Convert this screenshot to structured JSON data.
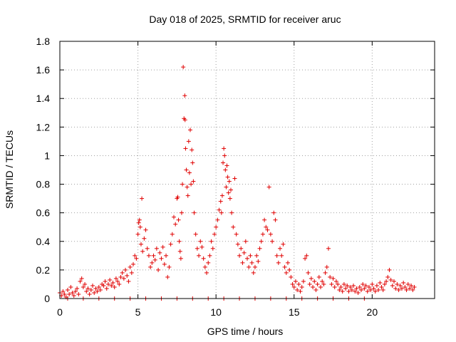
{
  "chart_data": {
    "type": "scatter",
    "title": "Day 018 of 2025, SRMTID for receiver aruc",
    "xlabel": "GPS time / hours",
    "ylabel": "SRMTID / TECUs",
    "xlim": [
      0,
      24
    ],
    "ylim": [
      0,
      1.8
    ],
    "xticks": [
      0,
      5,
      10,
      15,
      20
    ],
    "yticks": [
      0,
      0.2,
      0.4,
      0.6,
      0.8,
      1,
      1.2,
      1.4,
      1.6,
      1.8
    ],
    "xtick_labels": [
      "0",
      "5",
      "10",
      "15",
      "20"
    ],
    "ytick_labels": [
      "0",
      "0.2",
      "0.4",
      "0.6",
      "0.8",
      "1",
      "1.2",
      "1.4",
      "1.6",
      "1.8"
    ],
    "grid": true,
    "marker": "+",
    "color": "#e00000",
    "series": [
      {
        "name": "SRMTID",
        "points": [
          [
            0.0,
            0.04
          ],
          [
            0.1,
            0.02
          ],
          [
            0.2,
            0.05
          ],
          [
            0.3,
            0.03
          ],
          [
            0.4,
            0.01
          ],
          [
            0.5,
            0.06
          ],
          [
            0.6,
            0.03
          ],
          [
            0.7,
            0.08
          ],
          [
            0.8,
            0.04
          ],
          [
            0.9,
            0.02
          ],
          [
            1.0,
            0.05
          ],
          [
            1.1,
            0.07
          ],
          [
            1.2,
            0.03
          ],
          [
            1.3,
            0.12
          ],
          [
            1.4,
            0.14
          ],
          [
            1.5,
            0.08
          ],
          [
            1.6,
            0.1
          ],
          [
            1.7,
            0.05
          ],
          [
            1.8,
            0.07
          ],
          [
            1.9,
            0.03
          ],
          [
            2.0,
            0.06
          ],
          [
            2.1,
            0.09
          ],
          [
            2.2,
            0.04
          ],
          [
            2.3,
            0.07
          ],
          [
            2.4,
            0.05
          ],
          [
            2.5,
            0.08
          ],
          [
            2.6,
            0.06
          ],
          [
            2.7,
            0.1
          ],
          [
            2.8,
            0.09
          ],
          [
            2.9,
            0.12
          ],
          [
            3.0,
            0.07
          ],
          [
            3.1,
            0.1
          ],
          [
            3.2,
            0.13
          ],
          [
            3.3,
            0.09
          ],
          [
            3.4,
            0.11
          ],
          [
            3.5,
            0.08
          ],
          [
            3.6,
            0.14
          ],
          [
            3.7,
            0.12
          ],
          [
            3.8,
            0.1
          ],
          [
            3.9,
            0.15
          ],
          [
            4.0,
            0.18
          ],
          [
            4.1,
            0.14
          ],
          [
            4.2,
            0.2
          ],
          [
            4.3,
            0.16
          ],
          [
            4.4,
            0.12
          ],
          [
            4.5,
            0.22
          ],
          [
            4.6,
            0.18
          ],
          [
            4.7,
            0.24
          ],
          [
            4.8,
            0.3
          ],
          [
            4.9,
            0.28
          ],
          [
            5.0,
            0.45
          ],
          [
            5.05,
            0.53
          ],
          [
            5.1,
            0.55
          ],
          [
            5.15,
            0.5
          ],
          [
            5.2,
            0.38
          ],
          [
            5.25,
            0.7
          ],
          [
            5.3,
            0.33
          ],
          [
            5.4,
            0.42
          ],
          [
            5.5,
            0.48
          ],
          [
            5.6,
            0.35
          ],
          [
            5.7,
            0.3
          ],
          [
            5.8,
            0.22
          ],
          [
            5.9,
            0.25
          ],
          [
            6.0,
            0.3
          ],
          [
            6.1,
            0.27
          ],
          [
            6.2,
            0.35
          ],
          [
            6.3,
            0.2
          ],
          [
            6.4,
            0.32
          ],
          [
            6.5,
            0.28
          ],
          [
            6.6,
            0.36
          ],
          [
            6.7,
            0.24
          ],
          [
            6.8,
            0.3
          ],
          [
            6.9,
            0.15
          ],
          [
            7.0,
            0.22
          ],
          [
            7.1,
            0.38
          ],
          [
            7.2,
            0.45
          ],
          [
            7.3,
            0.57
          ],
          [
            7.4,
            0.52
          ],
          [
            7.5,
            0.7
          ],
          [
            7.55,
            0.71
          ],
          [
            7.6,
            0.55
          ],
          [
            7.65,
            0.4
          ],
          [
            7.7,
            0.33
          ],
          [
            7.75,
            0.28
          ],
          [
            7.8,
            0.6
          ],
          [
            7.85,
            0.8
          ],
          [
            7.9,
            1.62
          ],
          [
            7.95,
            1.26
          ],
          [
            8.0,
            1.42
          ],
          [
            8.02,
            1.25
          ],
          [
            8.05,
            1.05
          ],
          [
            8.1,
            0.9
          ],
          [
            8.15,
            0.78
          ],
          [
            8.2,
            0.72
          ],
          [
            8.25,
            1.1
          ],
          [
            8.3,
            0.88
          ],
          [
            8.35,
            1.18
          ],
          [
            8.4,
            0.8
          ],
          [
            8.45,
            1.04
          ],
          [
            8.5,
            0.95
          ],
          [
            8.55,
            0.82
          ],
          [
            8.6,
            0.6
          ],
          [
            8.7,
            0.45
          ],
          [
            8.8,
            0.35
          ],
          [
            8.9,
            0.3
          ],
          [
            9.0,
            0.4
          ],
          [
            9.1,
            0.36
          ],
          [
            9.2,
            0.28
          ],
          [
            9.3,
            0.22
          ],
          [
            9.4,
            0.18
          ],
          [
            9.5,
            0.25
          ],
          [
            9.6,
            0.3
          ],
          [
            9.7,
            0.4
          ],
          [
            9.8,
            0.35
          ],
          [
            9.9,
            0.45
          ],
          [
            10.0,
            0.5
          ],
          [
            10.1,
            0.55
          ],
          [
            10.2,
            0.62
          ],
          [
            10.3,
            0.68
          ],
          [
            10.35,
            0.6
          ],
          [
            10.4,
            0.72
          ],
          [
            10.45,
            0.95
          ],
          [
            10.5,
            1.05
          ],
          [
            10.55,
            1.0
          ],
          [
            10.6,
            0.9
          ],
          [
            10.65,
            0.78
          ],
          [
            10.7,
            0.93
          ],
          [
            10.75,
            0.85
          ],
          [
            10.8,
            0.74
          ],
          [
            10.85,
            0.82
          ],
          [
            10.9,
            0.7
          ],
          [
            10.95,
            0.76
          ],
          [
            11.0,
            0.6
          ],
          [
            11.1,
            0.5
          ],
          [
            11.2,
            0.84
          ],
          [
            11.3,
            0.45
          ],
          [
            11.4,
            0.38
          ],
          [
            11.5,
            0.3
          ],
          [
            11.6,
            0.35
          ],
          [
            11.7,
            0.25
          ],
          [
            11.8,
            0.32
          ],
          [
            11.9,
            0.4
          ],
          [
            12.0,
            0.28
          ],
          [
            12.1,
            0.22
          ],
          [
            12.2,
            0.3
          ],
          [
            12.3,
            0.25
          ],
          [
            12.4,
            0.18
          ],
          [
            12.5,
            0.22
          ],
          [
            12.6,
            0.3
          ],
          [
            12.7,
            0.26
          ],
          [
            12.8,
            0.35
          ],
          [
            12.9,
            0.4
          ],
          [
            13.0,
            0.45
          ],
          [
            13.1,
            0.55
          ],
          [
            13.2,
            0.5
          ],
          [
            13.3,
            0.48
          ],
          [
            13.4,
            0.78
          ],
          [
            13.5,
            0.45
          ],
          [
            13.6,
            0.4
          ],
          [
            13.7,
            0.6
          ],
          [
            13.8,
            0.55
          ],
          [
            13.9,
            0.3
          ],
          [
            14.0,
            0.25
          ],
          [
            14.1,
            0.35
          ],
          [
            14.2,
            0.3
          ],
          [
            14.3,
            0.38
          ],
          [
            14.4,
            0.22
          ],
          [
            14.5,
            0.18
          ],
          [
            14.6,
            0.25
          ],
          [
            14.7,
            0.2
          ],
          [
            14.8,
            0.15
          ],
          [
            14.9,
            0.1
          ],
          [
            15.0,
            0.08
          ],
          [
            15.1,
            0.12
          ],
          [
            15.2,
            0.06
          ],
          [
            15.3,
            0.1
          ],
          [
            15.4,
            0.05
          ],
          [
            15.5,
            0.08
          ],
          [
            15.6,
            0.12
          ],
          [
            15.7,
            0.28
          ],
          [
            15.8,
            0.3
          ],
          [
            15.9,
            0.18
          ],
          [
            16.0,
            0.1
          ],
          [
            16.1,
            0.14
          ],
          [
            16.2,
            0.08
          ],
          [
            16.3,
            0.12
          ],
          [
            16.4,
            0.06
          ],
          [
            16.5,
            0.1
          ],
          [
            16.6,
            0.15
          ],
          [
            16.7,
            0.08
          ],
          [
            16.8,
            0.12
          ],
          [
            16.9,
            0.1
          ],
          [
            17.0,
            0.18
          ],
          [
            17.1,
            0.22
          ],
          [
            17.2,
            0.35
          ],
          [
            17.3,
            0.15
          ],
          [
            17.4,
            0.1
          ],
          [
            17.5,
            0.14
          ],
          [
            17.6,
            0.08
          ],
          [
            17.7,
            0.12
          ],
          [
            17.8,
            0.1
          ],
          [
            17.9,
            0.06
          ],
          [
            18.0,
            0.08
          ],
          [
            18.1,
            0.05
          ],
          [
            18.2,
            0.1
          ],
          [
            18.3,
            0.07
          ],
          [
            18.4,
            0.09
          ],
          [
            18.5,
            0.05
          ],
          [
            18.6,
            0.08
          ],
          [
            18.7,
            0.06
          ],
          [
            18.8,
            0.09
          ],
          [
            18.9,
            0.05
          ],
          [
            19.0,
            0.07
          ],
          [
            19.1,
            0.04
          ],
          [
            19.2,
            0.08
          ],
          [
            19.3,
            0.06
          ],
          [
            19.4,
            0.1
          ],
          [
            19.5,
            0.07
          ],
          [
            19.6,
            0.09
          ],
          [
            19.7,
            0.05
          ],
          [
            19.8,
            0.08
          ],
          [
            19.9,
            0.06
          ],
          [
            20.0,
            0.1
          ],
          [
            20.1,
            0.07
          ],
          [
            20.2,
            0.05
          ],
          [
            20.3,
            0.09
          ],
          [
            20.4,
            0.06
          ],
          [
            20.5,
            0.11
          ],
          [
            20.6,
            0.08
          ],
          [
            20.7,
            0.06
          ],
          [
            20.8,
            0.1
          ],
          [
            20.9,
            0.12
          ],
          [
            21.0,
            0.15
          ],
          [
            21.1,
            0.2
          ],
          [
            21.2,
            0.13
          ],
          [
            21.3,
            0.09
          ],
          [
            21.4,
            0.12
          ],
          [
            21.5,
            0.07
          ],
          [
            21.6,
            0.1
          ],
          [
            21.7,
            0.06
          ],
          [
            21.8,
            0.09
          ],
          [
            21.9,
            0.07
          ],
          [
            22.0,
            0.11
          ],
          [
            22.1,
            0.08
          ],
          [
            22.2,
            0.06
          ],
          [
            22.3,
            0.1
          ],
          [
            22.4,
            0.07
          ],
          [
            22.5,
            0.09
          ],
          [
            22.6,
            0.06
          ],
          [
            22.7,
            0.08
          ],
          [
            0.5,
            0.0
          ],
          [
            1.5,
            0.0
          ],
          [
            2.5,
            0.0
          ],
          [
            3.5,
            0.0
          ],
          [
            4.5,
            0.0
          ],
          [
            5.5,
            0.0
          ],
          [
            6.5,
            0.0
          ],
          [
            7.5,
            0.0
          ],
          [
            8.5,
            0.0
          ],
          [
            9.5,
            0.0
          ],
          [
            10.5,
            0.0
          ],
          [
            11.5,
            0.0
          ],
          [
            12.5,
            0.0
          ],
          [
            13.5,
            0.0
          ],
          [
            14.5,
            0.0
          ],
          [
            15.5,
            0.0
          ],
          [
            16.5,
            0.0
          ],
          [
            17.5,
            0.0
          ],
          [
            18.5,
            0.0
          ],
          [
            19.5,
            0.0
          ]
        ]
      }
    ]
  }
}
